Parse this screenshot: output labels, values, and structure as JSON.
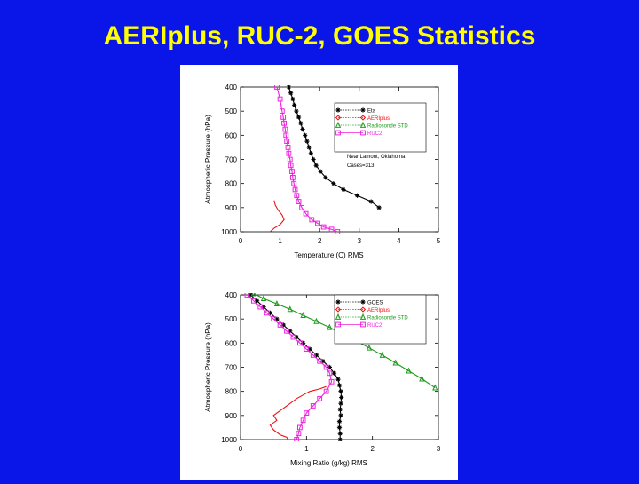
{
  "slide": {
    "title": "AERIplus, RUC-2, GOES Statistics"
  },
  "colors": {
    "background": "#0a16e8",
    "title": "#ffff00",
    "black": "#000000",
    "red": "#ee1111",
    "green": "#1a9a1a",
    "magenta": "#ee22dd"
  },
  "chart_data": [
    {
      "type": "line",
      "xlabel": "Temperature (C) RMS",
      "ylabel": "Atmospheric Pressure (hPa)",
      "xlim": [
        0,
        5
      ],
      "ylim": [
        1000,
        400
      ],
      "xticks": [
        "0",
        "1",
        "2",
        "3",
        "4",
        "5"
      ],
      "yticks": [
        "400",
        "500",
        "600",
        "700",
        "800",
        "900",
        "1000"
      ],
      "legend_position": "top-right",
      "annotations": [
        "Near Lamont, Oklahoma",
        "Cases=313"
      ],
      "series": [
        {
          "name": "Eta",
          "color": "#000000",
          "marker": "star",
          "x": [
            1.22,
            1.27,
            1.32,
            1.36,
            1.41,
            1.47,
            1.52,
            1.57,
            1.63,
            1.68,
            1.73,
            1.78,
            1.84,
            1.91,
            2.02,
            2.15,
            2.35,
            2.6,
            2.95,
            3.3,
            3.5
          ],
          "y": [
            400,
            425,
            450,
            475,
            500,
            525,
            550,
            575,
            600,
            625,
            650,
            675,
            700,
            725,
            750,
            775,
            800,
            825,
            850,
            875,
            900
          ]
        },
        {
          "name": "AERIplus",
          "color": "#ee1111",
          "marker": "diamond",
          "x": [
            0.85,
            0.88,
            0.95,
            1.05,
            1.1,
            1.0,
            0.85,
            0.75
          ],
          "y": [
            870,
            890,
            910,
            930,
            950,
            970,
            985,
            1000
          ]
        },
        {
          "name": "Radiosonde STD",
          "color": "#1a9a1a",
          "marker": "triangle",
          "x": [],
          "y": []
        },
        {
          "name": "RUC2",
          "color": "#ee22dd",
          "marker": "square",
          "x": [
            0.92,
            1.0,
            1.05,
            1.08,
            1.1,
            1.13,
            1.15,
            1.17,
            1.2,
            1.22,
            1.25,
            1.27,
            1.3,
            1.32,
            1.35,
            1.38,
            1.42,
            1.47,
            1.55,
            1.65,
            1.8,
            1.95,
            2.1,
            2.3,
            2.45
          ],
          "y": [
            400,
            450,
            500,
            525,
            550,
            575,
            600,
            625,
            650,
            675,
            700,
            725,
            750,
            775,
            800,
            825,
            850,
            875,
            900,
            925,
            950,
            965,
            980,
            990,
            1000
          ]
        }
      ]
    },
    {
      "type": "line",
      "xlabel": "Mixing Ratio (g/kg) RMS",
      "ylabel": "Atmospheric Pressure (hPa)",
      "xlim": [
        0,
        3
      ],
      "ylim": [
        1000,
        400
      ],
      "xticks": [
        "0",
        "1",
        "2",
        "3"
      ],
      "yticks": [
        "400",
        "500",
        "600",
        "700",
        "800",
        "900",
        "1000"
      ],
      "legend_position": "top-right",
      "series": [
        {
          "name": "GOES",
          "color": "#000000",
          "marker": "star",
          "x": [
            0.15,
            0.25,
            0.35,
            0.45,
            0.55,
            0.65,
            0.75,
            0.85,
            0.95,
            1.05,
            1.15,
            1.25,
            1.35,
            1.42,
            1.48,
            1.5,
            1.52,
            1.53,
            1.52,
            1.51,
            1.52,
            1.5,
            1.5,
            1.51,
            1.51
          ],
          "y": [
            400,
            425,
            450,
            475,
            500,
            525,
            550,
            575,
            600,
            625,
            650,
            675,
            700,
            725,
            750,
            775,
            800,
            825,
            850,
            875,
            900,
            925,
            950,
            975,
            1000
          ]
        },
        {
          "name": "AERIplus",
          "color": "#ee1111",
          "marker": "diamond",
          "x": [
            1.3,
            1.2,
            1.05,
            0.95,
            0.85,
            0.75,
            0.6,
            0.5,
            0.55,
            0.45,
            0.5,
            0.6,
            0.7,
            0.72
          ],
          "y": [
            780,
            790,
            800,
            815,
            830,
            850,
            880,
            900,
            920,
            940,
            960,
            980,
            990,
            1000
          ]
        },
        {
          "name": "Radiosonde STD",
          "color": "#1a9a1a",
          "marker": "triangle",
          "x": [
            0.2,
            0.35,
            0.55,
            0.75,
            0.95,
            1.15,
            1.35,
            1.55,
            1.75,
            1.95,
            2.15,
            2.35,
            2.55,
            2.75,
            2.95
          ],
          "y": [
            395,
            415,
            437,
            460,
            485,
            510,
            535,
            562,
            590,
            620,
            650,
            682,
            715,
            748,
            785
          ]
        },
        {
          "name": "RUC2",
          "color": "#ee22dd",
          "marker": "square",
          "x": [
            0.1,
            0.2,
            0.3,
            0.4,
            0.5,
            0.6,
            0.7,
            0.8,
            0.9,
            1.0,
            1.1,
            1.2,
            1.3,
            1.35,
            1.38,
            1.3,
            1.2,
            1.1,
            1.0,
            0.95,
            0.9,
            0.88,
            0.85
          ],
          "y": [
            400,
            425,
            450,
            475,
            500,
            525,
            550,
            575,
            600,
            625,
            650,
            675,
            700,
            725,
            760,
            800,
            830,
            860,
            890,
            920,
            950,
            975,
            1000
          ]
        }
      ]
    }
  ]
}
